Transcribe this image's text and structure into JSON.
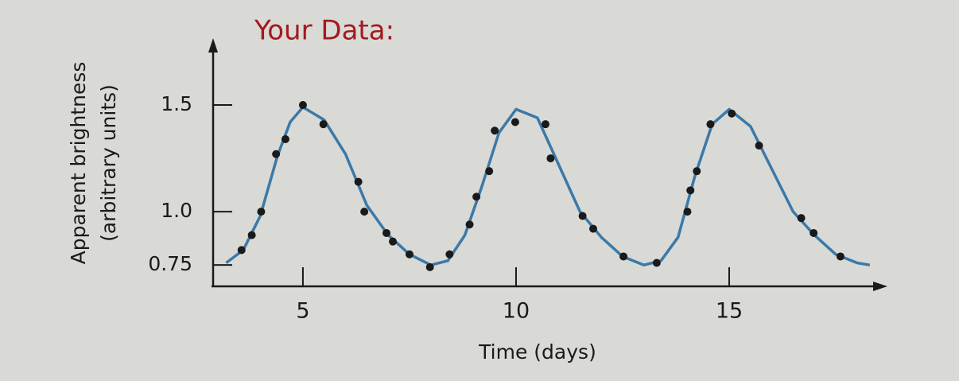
{
  "chart_data": {
    "type": "scatter",
    "title": "Your Data:",
    "y_label": [
      "Apparent brightness",
      "(arbitrary units)"
    ],
    "x_label": "Time (days)",
    "xlim": [
      2.8,
      18.6
    ],
    "ylim": [
      0.65,
      1.75
    ],
    "xticks": [
      5,
      10,
      15
    ],
    "yticks": [
      0.75,
      {
        "value": 1,
        "label": "1.0"
      },
      1.5
    ],
    "series": [
      {
        "style": "points",
        "color": "#1a1a1a",
        "x": [
          3.56,
          3.8,
          4.02,
          4.37,
          4.59,
          5.0,
          5.48,
          6.3,
          6.44,
          6.96,
          7.11,
          7.5,
          7.98,
          8.44,
          8.91,
          9.07,
          9.37,
          9.5,
          9.98,
          10.69,
          10.81,
          11.56,
          11.81,
          12.52,
          13.3,
          14.02,
          14.09,
          14.24,
          14.56,
          15.06,
          15.7,
          16.69,
          16.98,
          17.61
        ],
        "values": [
          0.82,
          0.89,
          1.0,
          1.27,
          1.34,
          1.5,
          1.41,
          1.14,
          1.0,
          0.9,
          0.86,
          0.8,
          0.74,
          0.8,
          0.94,
          1.07,
          1.19,
          1.38,
          1.42,
          1.41,
          1.25,
          0.98,
          0.92,
          0.79,
          0.76,
          1.0,
          1.1,
          1.19,
          1.41,
          1.46,
          1.31,
          0.97,
          0.9,
          0.79
        ]
      },
      {
        "style": "line",
        "color": "#3b79a8",
        "x": [
          3.2,
          3.6,
          4.0,
          4.4,
          4.7,
          5.0,
          5.5,
          6.0,
          6.5,
          7.0,
          7.5,
          8.0,
          8.4,
          8.8,
          9.2,
          9.6,
          10.0,
          10.5,
          11.0,
          11.5,
          12.0,
          12.5,
          13.0,
          13.4,
          13.8,
          14.2,
          14.6,
          15.0,
          15.5,
          16.0,
          16.5,
          17.0,
          17.5,
          18.0,
          18.3
        ],
        "values": [
          0.76,
          0.82,
          0.98,
          1.26,
          1.42,
          1.49,
          1.43,
          1.27,
          1.03,
          0.89,
          0.8,
          0.75,
          0.77,
          0.89,
          1.12,
          1.37,
          1.48,
          1.44,
          1.22,
          1.0,
          0.88,
          0.79,
          0.75,
          0.77,
          0.88,
          1.17,
          1.41,
          1.48,
          1.4,
          1.2,
          1.0,
          0.89,
          0.8,
          0.76,
          0.75
        ]
      }
    ]
  }
}
